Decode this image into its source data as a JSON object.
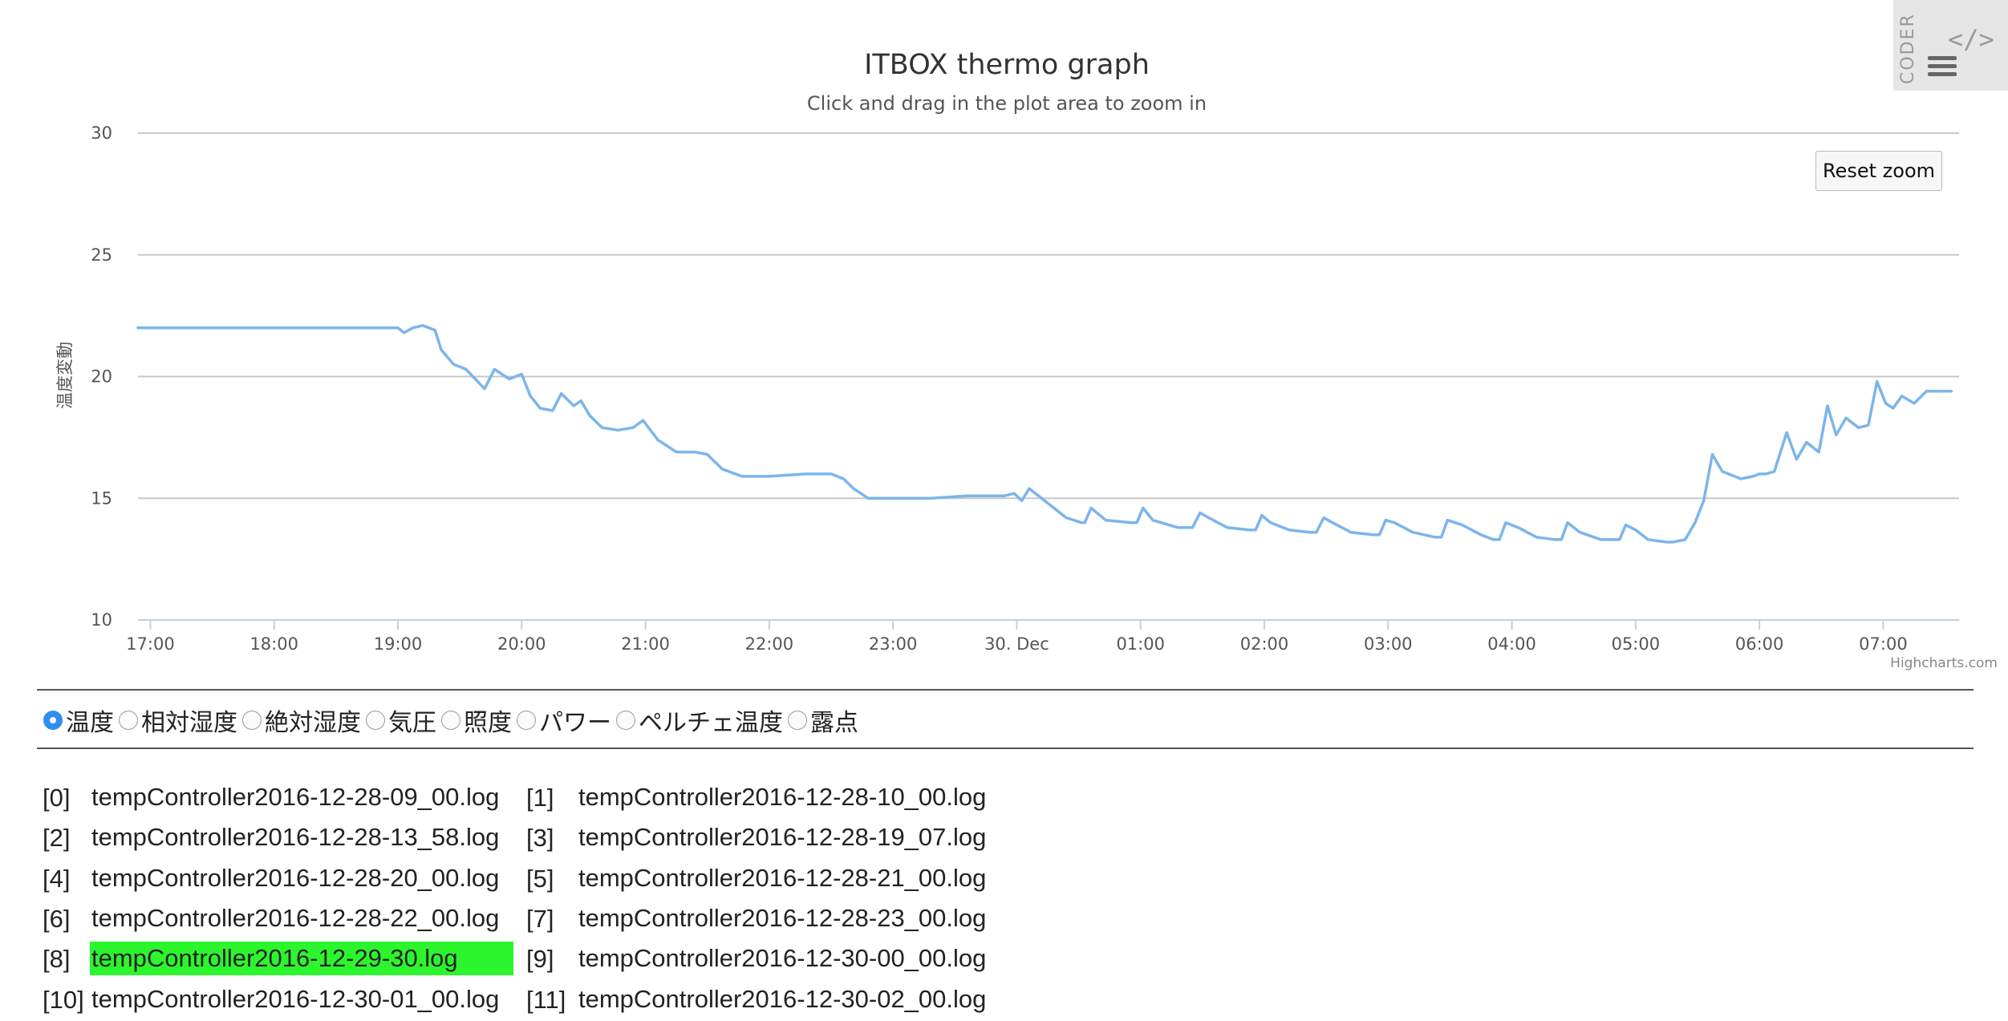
{
  "header": {
    "coder_tab_label": "CODER",
    "code_icon": "</>",
    "menu_icon": "hamburger-menu-icon"
  },
  "chart_data": {
    "type": "line",
    "title": "ITBOX thermo graph",
    "subtitle": "Click and drag in the plot area to zoom in",
    "ylabel": "温度変動",
    "xlabel": "",
    "ylim": [
      10,
      30
    ],
    "yticks": [
      "10",
      "15",
      "20",
      "25",
      "30"
    ],
    "x_axis_kind": "datetime (hours)",
    "xlim_hours": [
      16.9,
      31.6
    ],
    "xticks": [
      {
        "label": "17:00",
        "hour": 17
      },
      {
        "label": "18:00",
        "hour": 18
      },
      {
        "label": "19:00",
        "hour": 19
      },
      {
        "label": "20:00",
        "hour": 20
      },
      {
        "label": "21:00",
        "hour": 21
      },
      {
        "label": "22:00",
        "hour": 22
      },
      {
        "label": "23:00",
        "hour": 23
      },
      {
        "label": "30. Dec",
        "hour": 24
      },
      {
        "label": "01:00",
        "hour": 25
      },
      {
        "label": "02:00",
        "hour": 26
      },
      {
        "label": "03:00",
        "hour": 27
      },
      {
        "label": "04:00",
        "hour": 28
      },
      {
        "label": "05:00",
        "hour": 29
      },
      {
        "label": "06:00",
        "hour": 30
      },
      {
        "label": "07:00",
        "hour": 31
      }
    ],
    "grid": true,
    "legend": "none",
    "credits": "Highcharts.com",
    "reset_zoom_label": "Reset zoom",
    "line_color": "#7cb5ec",
    "series": [
      {
        "x": [
          16.9,
          17.5,
          18.0,
          18.5,
          19.0,
          19.05,
          19.12,
          19.2,
          19.3,
          19.35,
          19.45,
          19.55,
          19.7,
          19.78,
          19.9,
          20.0,
          20.07,
          20.15,
          20.25,
          20.32,
          20.42,
          20.48,
          20.55,
          20.65,
          20.78,
          20.9,
          20.98,
          21.1,
          21.25,
          21.4,
          21.5,
          21.62,
          21.78,
          22.0,
          22.3,
          22.5,
          22.6,
          22.68,
          22.8,
          23.0,
          23.3,
          23.6,
          23.9,
          23.98,
          24.04,
          24.1,
          24.25,
          24.4,
          24.52,
          24.55,
          24.6,
          24.72,
          24.92,
          24.97,
          25.02,
          25.1,
          25.3,
          25.42,
          25.48,
          25.55,
          25.7,
          25.88,
          25.93,
          25.98,
          26.05,
          26.2,
          26.37,
          26.42,
          26.48,
          26.55,
          26.7,
          26.88,
          26.93,
          26.98,
          27.05,
          27.2,
          27.38,
          27.43,
          27.48,
          27.6,
          27.75,
          27.85,
          27.9,
          27.95,
          28.05,
          28.2,
          28.35,
          28.4,
          28.45,
          28.55,
          28.72,
          28.82,
          28.87,
          28.92,
          29.0,
          29.1,
          29.25,
          29.3,
          29.4,
          29.48,
          29.55,
          29.62,
          29.7,
          29.85,
          29.95,
          30.0,
          30.05,
          30.12,
          30.22,
          30.3,
          30.38,
          30.48,
          30.55,
          30.62,
          30.7,
          30.8,
          30.88,
          30.95,
          31.02,
          31.08,
          31.15,
          31.25,
          31.35,
          31.45,
          31.55
        ],
        "y": [
          22.0,
          22.0,
          22.0,
          22.0,
          22.0,
          21.8,
          22.0,
          22.1,
          21.9,
          21.1,
          20.5,
          20.3,
          19.5,
          20.3,
          19.9,
          20.1,
          19.2,
          18.7,
          18.6,
          19.3,
          18.8,
          19.0,
          18.4,
          17.9,
          17.8,
          17.9,
          18.2,
          17.4,
          16.9,
          16.9,
          16.8,
          16.2,
          15.9,
          15.9,
          16.0,
          16.0,
          15.8,
          15.4,
          15.0,
          15.0,
          15.0,
          15.1,
          15.1,
          15.2,
          14.9,
          15.4,
          14.8,
          14.2,
          14.0,
          14.0,
          14.6,
          14.1,
          14.0,
          14.0,
          14.6,
          14.1,
          13.8,
          13.8,
          14.4,
          14.2,
          13.8,
          13.7,
          13.7,
          14.3,
          14.0,
          13.7,
          13.6,
          13.6,
          14.2,
          14.0,
          13.6,
          13.5,
          13.5,
          14.1,
          14.0,
          13.6,
          13.4,
          13.4,
          14.1,
          13.9,
          13.5,
          13.3,
          13.3,
          14.0,
          13.8,
          13.4,
          13.3,
          13.3,
          14.0,
          13.6,
          13.3,
          13.3,
          13.3,
          13.9,
          13.7,
          13.3,
          13.2,
          13.2,
          13.3,
          14.0,
          14.9,
          16.8,
          16.1,
          15.8,
          15.9,
          16.0,
          16.0,
          16.1,
          17.7,
          16.6,
          17.3,
          16.9,
          18.8,
          17.6,
          18.3,
          17.9,
          18.0,
          19.8,
          18.9,
          18.7,
          19.2,
          18.9,
          19.4,
          19.4,
          19.4
        ]
      }
    ]
  },
  "controls": {
    "radios": [
      {
        "label": "温度",
        "checked": true,
        "icon": "radio-checked-icon"
      },
      {
        "label": "相対湿度",
        "checked": false,
        "icon": "radio-unchecked-icon"
      },
      {
        "label": "絶対湿度",
        "checked": false,
        "icon": "radio-unchecked-icon"
      },
      {
        "label": "気圧",
        "checked": false,
        "icon": "radio-unchecked-icon"
      },
      {
        "label": "照度",
        "checked": false,
        "icon": "radio-unchecked-icon"
      },
      {
        "label": "パワー",
        "checked": false,
        "icon": "radio-unchecked-icon"
      },
      {
        "label": "ペルチェ温度",
        "checked": false,
        "icon": "radio-unchecked-icon"
      },
      {
        "label": "露点",
        "checked": false,
        "icon": "radio-unchecked-icon"
      }
    ]
  },
  "logs": {
    "highlight_color": "#2df52d",
    "items": [
      {
        "index": "[0]",
        "name": "tempController2016-12-28-09_00.log",
        "highlighted": false
      },
      {
        "index": "[1]",
        "name": "tempController2016-12-28-10_00.log",
        "highlighted": false
      },
      {
        "index": "[2]",
        "name": "tempController2016-12-28-13_58.log",
        "highlighted": false
      },
      {
        "index": "[3]",
        "name": "tempController2016-12-28-19_07.log",
        "highlighted": false
      },
      {
        "index": "[4]",
        "name": "tempController2016-12-28-20_00.log",
        "highlighted": false
      },
      {
        "index": "[5]",
        "name": "tempController2016-12-28-21_00.log",
        "highlighted": false
      },
      {
        "index": "[6]",
        "name": "tempController2016-12-28-22_00.log",
        "highlighted": false
      },
      {
        "index": "[7]",
        "name": "tempController2016-12-28-23_00.log",
        "highlighted": false
      },
      {
        "index": "[8]",
        "name": "tempController2016-12-29-30.log",
        "highlighted": true
      },
      {
        "index": "[9]",
        "name": "tempController2016-12-30-00_00.log",
        "highlighted": false
      },
      {
        "index": "[10]",
        "name": "tempController2016-12-30-01_00.log",
        "highlighted": false
      },
      {
        "index": "[11]",
        "name": "tempController2016-12-30-02_00.log",
        "highlighted": false
      }
    ]
  }
}
